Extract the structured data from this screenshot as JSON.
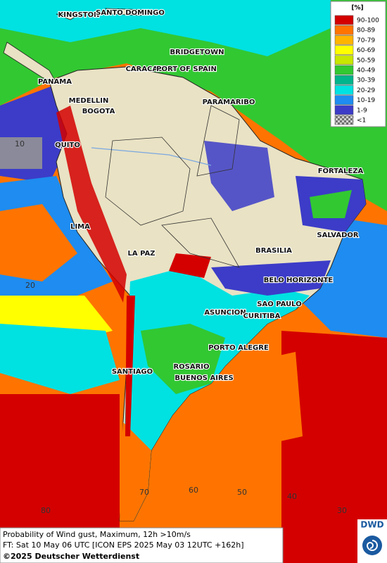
{
  "map": {
    "cities": [
      "KINGSTON",
      "SANTO DOMINGO",
      "BRIDGETOWN",
      "CARACAS",
      "PORT OF SPAIN",
      "PANAMA",
      "MEDELLIN",
      "BOGOTA",
      "PARAMARIBO",
      "QUITO",
      "FORTALEZA",
      "LIMA",
      "SALVADOR",
      "LA PAZ",
      "BRASILIA",
      "BELO HORIZONTE",
      "ASUNCION",
      "SAO PAULO",
      "CURITIBA",
      "PORTO ALEGRE",
      "SANTIAGO",
      "ROSARIO",
      "BUENOS AIRES"
    ],
    "grid_labels": [
      "10",
      "20",
      "80",
      "70",
      "60",
      "50",
      "40",
      "30"
    ]
  },
  "legend": {
    "title": "[%]",
    "items": [
      {
        "label": "90-100",
        "color": "#d40000"
      },
      {
        "label": "80-89",
        "color": "#ff7400"
      },
      {
        "label": "70-79",
        "color": "#ffb400"
      },
      {
        "label": "60-69",
        "color": "#ffff00"
      },
      {
        "label": "50-59",
        "color": "#c8e600"
      },
      {
        "label": "40-49",
        "color": "#32c832"
      },
      {
        "label": "30-39",
        "color": "#00b48c"
      },
      {
        "label": "20-29",
        "color": "#00e1e1"
      },
      {
        "label": "10-19",
        "color": "#1e8cf0"
      },
      {
        "label": "1-9",
        "color": "#3c3cc8"
      },
      {
        "label": "<1",
        "color": "#a0a0a0"
      }
    ]
  },
  "caption": {
    "line1": "Probability of Wind gust, Maximum, 12h >10m/s",
    "line2": "FT: Sat 10 May 06 UTC [ICON EPS 2025 May 03 12UTC +162h]",
    "copyright": "©2025 Deutscher Wetterdienst",
    "logo": "DWD"
  }
}
